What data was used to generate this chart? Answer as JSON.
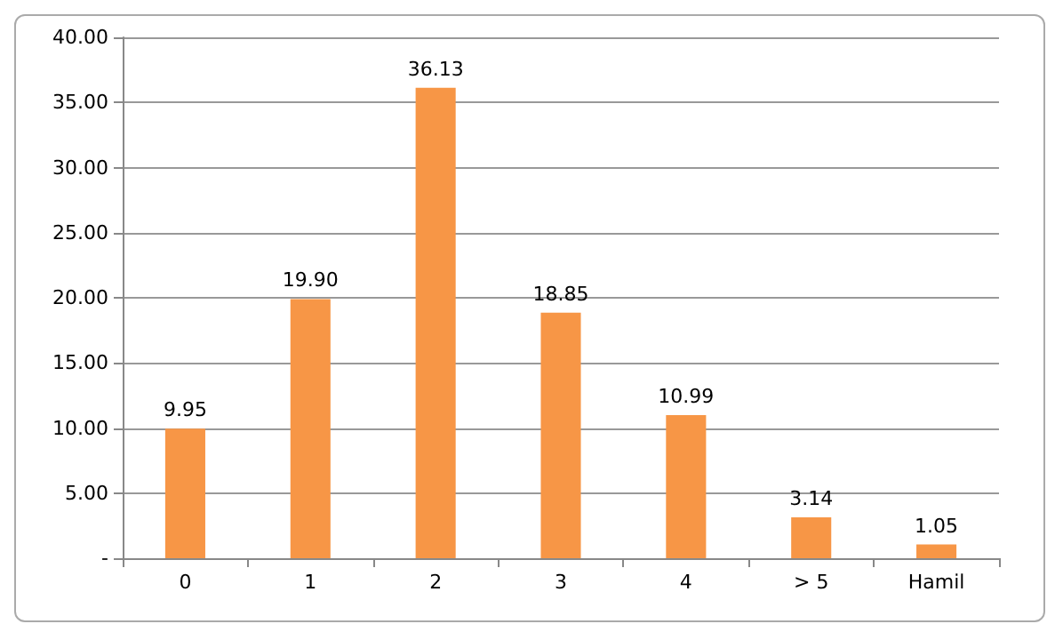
{
  "chart_data": {
    "type": "bar",
    "categories": [
      "0",
      "1",
      "2",
      "3",
      "4",
      "> 5",
      "Hamil"
    ],
    "values": [
      9.95,
      19.9,
      36.13,
      18.85,
      10.99,
      3.14,
      1.05
    ],
    "value_labels": [
      "9.95",
      "19.90",
      "36.13",
      "18.85",
      "10.99",
      "3.14",
      "1.05"
    ],
    "color": "#f79646",
    "ylim": [
      0,
      40
    ],
    "yticks": [
      {
        "value": 0,
        "label": "-"
      },
      {
        "value": 5,
        "label": "5.00"
      },
      {
        "value": 10,
        "label": "10.00"
      },
      {
        "value": 15,
        "label": "15.00"
      },
      {
        "value": 20,
        "label": "20.00"
      },
      {
        "value": 25,
        "label": "25.00"
      },
      {
        "value": 30,
        "label": "30.00"
      },
      {
        "value": 35,
        "label": "35.00"
      },
      {
        "value": 40,
        "label": "40.00"
      }
    ],
    "grid": "y"
  }
}
